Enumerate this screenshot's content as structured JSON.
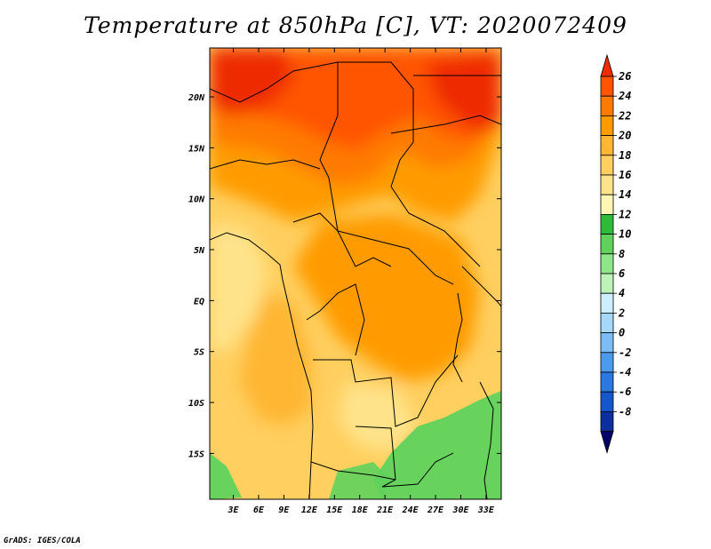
{
  "chart_data": {
    "type": "heatmap",
    "title": "Temperature at 850hPa [C], VT: 2020072409",
    "x_tick_labels": [
      "3E",
      "6E",
      "9E",
      "12E",
      "15E",
      "18E",
      "21E",
      "24E",
      "27E",
      "30E",
      "33E"
    ],
    "y_tick_labels": [
      "20N",
      "15N",
      "10N",
      "5N",
      "EQ",
      "5S",
      "10S",
      "15S"
    ],
    "x_ticks_deg": [
      3,
      6,
      9,
      12,
      15,
      18,
      21,
      24,
      27,
      30,
      33
    ],
    "y_ticks_deg": [
      20,
      15,
      10,
      5,
      0,
      -5,
      -10,
      -15
    ],
    "xlim": [
      0.2,
      34.8
    ],
    "ylim": [
      -19.5,
      24.8
    ],
    "colorbar_labels": [
      "26",
      "24",
      "22",
      "20",
      "18",
      "16",
      "14",
      "12",
      "10",
      "8",
      "6",
      "4",
      "2",
      "0",
      "-2",
      "-4",
      "-6",
      "-8"
    ],
    "colorbar_colors": [
      "#ee2c00",
      "#ff5400",
      "#ff7a00",
      "#ff9b00",
      "#ffb633",
      "#ffcf5f",
      "#ffe38a",
      "#fff6b4",
      "#2fbb3a",
      "#5fd25c",
      "#8ee58a",
      "#bdf2b8",
      "#cdeefc",
      "#a6d8fa",
      "#7bbdf4",
      "#4a9bee",
      "#2a78e2",
      "#1656cd",
      "#0b2f9e",
      "#000066"
    ],
    "legend_placement": "right"
  },
  "credit": "GrADS: IGES/COLA"
}
